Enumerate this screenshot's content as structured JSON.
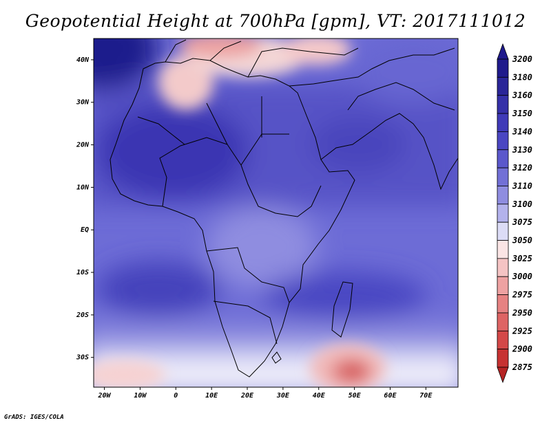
{
  "title": "Geopotential Height at 700hPa [gpm], VT: 2017111012",
  "credit": "GrADS: IGES/COLA",
  "map": {
    "lon_range": [
      -23,
      79
    ],
    "lat_range": [
      -37,
      45
    ],
    "x_ticks": [
      {
        "lon": -20,
        "label": "20W"
      },
      {
        "lon": -10,
        "label": "10W"
      },
      {
        "lon": 0,
        "label": "0"
      },
      {
        "lon": 10,
        "label": "10E"
      },
      {
        "lon": 20,
        "label": "20E"
      },
      {
        "lon": 30,
        "label": "30E"
      },
      {
        "lon": 40,
        "label": "40E"
      },
      {
        "lon": 50,
        "label": "50E"
      },
      {
        "lon": 60,
        "label": "60E"
      },
      {
        "lon": 70,
        "label": "70E"
      }
    ],
    "y_ticks": [
      {
        "lat": 40,
        "label": "40N"
      },
      {
        "lat": 30,
        "label": "30N"
      },
      {
        "lat": 20,
        "label": "20N"
      },
      {
        "lat": 10,
        "label": "10N"
      },
      {
        "lat": 0,
        "label": "EQ"
      },
      {
        "lat": -10,
        "label": "10S"
      },
      {
        "lat": -20,
        "label": "20S"
      },
      {
        "lat": -30,
        "label": "30S"
      }
    ]
  },
  "colorbar": {
    "levels": [
      "3200",
      "3180",
      "3160",
      "3150",
      "3140",
      "3130",
      "3120",
      "3110",
      "3100",
      "3075",
      "3050",
      "3025",
      "3000",
      "2975",
      "2950",
      "2925",
      "2900",
      "2875"
    ],
    "colors": [
      "#1f1a8c",
      "#2a2598",
      "#3530a8",
      "#3f3ab8",
      "#4a46c2",
      "#5b58cc",
      "#7270d6",
      "#8f8de0",
      "#b3b2ec",
      "#dcdcf6",
      "#fbe5e5",
      "#f5c4c4",
      "#eea2a2",
      "#e68282",
      "#de6464",
      "#d44848",
      "#c73232",
      "#b52424"
    ]
  }
}
